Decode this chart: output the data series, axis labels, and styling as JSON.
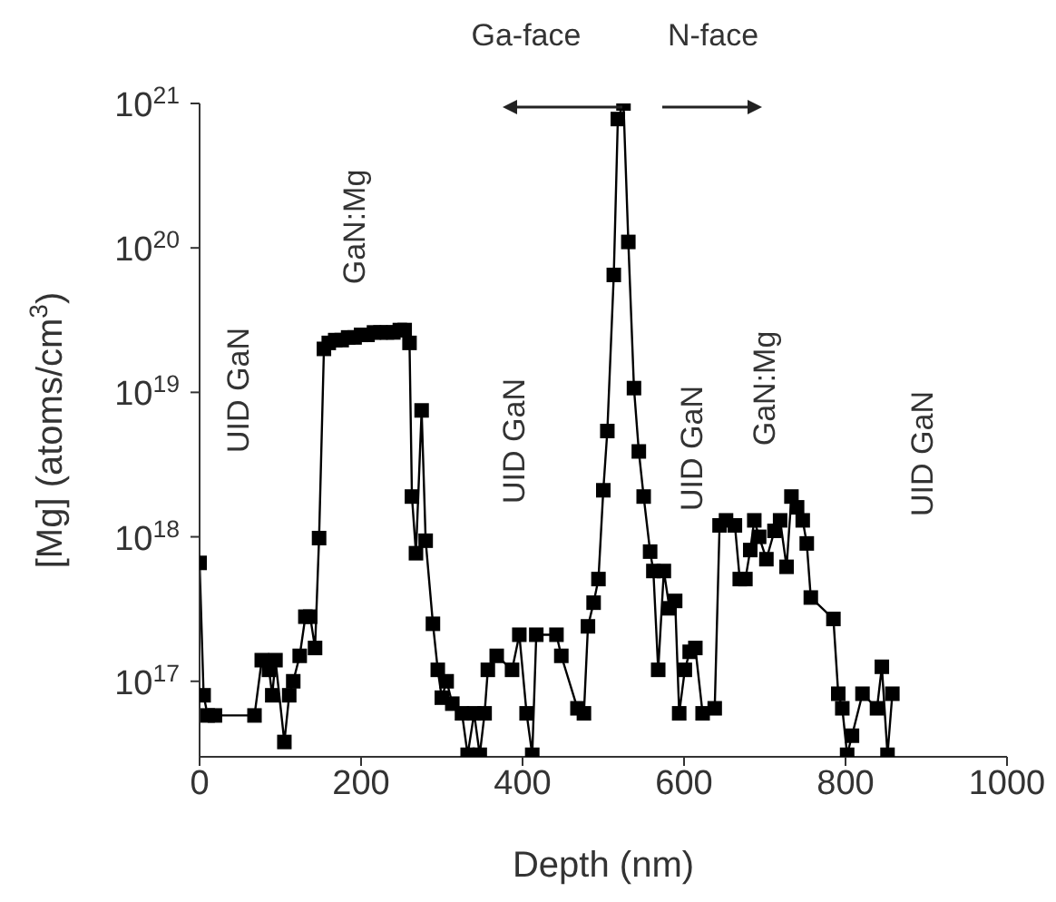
{
  "chart_data": {
    "type": "line",
    "xlabel": "Depth (nm)",
    "ylabel": "[Mg] (atoms/cm$^{3}$)",
    "log": "y",
    "xlim": [
      0,
      1000
    ],
    "xticks": [
      0,
      200,
      400,
      600,
      800,
      1000
    ],
    "ylim": [
      3e+16,
      1e+21
    ],
    "yticks": [
      {
        "value": 1e+17,
        "label": "10$^{17}$"
      },
      {
        "value": 1e+18,
        "label": "10$^{18}$"
      },
      {
        "value": 1e+19,
        "label": "10$^{19}$"
      },
      {
        "value": 1e+20,
        "label": "10$^{20}$"
      },
      {
        "value": 1e+21,
        "label": "10$^{21}$"
      }
    ],
    "marker": "square",
    "line_style": "solid",
    "x": [
      0,
      5,
      10,
      19,
      68,
      77,
      86,
      90,
      94,
      105,
      111,
      116,
      124,
      131,
      137,
      143,
      148,
      154,
      160,
      168,
      176,
      184,
      192,
      200,
      208,
      216,
      224,
      232,
      240,
      248,
      254,
      260,
      263,
      268,
      275,
      280,
      289,
      295,
      300,
      306,
      313,
      325,
      332,
      340,
      347,
      353,
      357,
      368,
      387,
      396,
      405,
      412,
      417,
      442,
      448,
      468,
      476,
      481,
      488,
      494,
      500,
      505,
      513,
      518,
      525,
      531,
      538,
      544,
      550,
      558,
      562,
      568,
      575,
      582,
      589,
      594,
      601,
      607,
      614,
      623,
      638,
      644,
      652,
      663,
      669,
      676,
      682,
      687,
      693,
      702,
      712,
      719,
      727,
      733,
      740,
      747,
      752,
      757,
      785,
      791,
      796,
      802,
      808,
      821,
      839,
      845,
      852,
      858
    ],
    "series": [
      {
        "color": "#000000",
        "values": [
          6.6e+17,
          8e+16,
          5.8e+16,
          5.8e+16,
          5.8e+16,
          1.4e+17,
          1.2e+17,
          8e+16,
          1.4e+17,
          3.8e+16,
          8e+16,
          1e+17,
          1.5e+17,
          2.8e+17,
          2.8e+17,
          1.7e+17,
          9.8e+17,
          2e+19,
          2.2e+19,
          2.3e+19,
          2.3e+19,
          2.4e+19,
          2.4e+19,
          2.5e+19,
          2.5e+19,
          2.6e+19,
          2.6e+19,
          2.6e+19,
          2.6e+19,
          2.7e+19,
          2.7e+19,
          2.2e+19,
          1.9e+18,
          7.7e+17,
          7.5e+18,
          9.4e+17,
          2.5e+17,
          1.2e+17,
          7.7e+16,
          1e+17,
          7e+16,
          6e+16,
          3.1e+16,
          6e+16,
          3.1e+16,
          6e+16,
          1.2e+17,
          1.5e+17,
          1.2e+17,
          2.1e+17,
          6e+16,
          3.1e+16,
          2.1e+17,
          2.1e+17,
          1.5e+17,
          6.5e+16,
          6e+16,
          2.4e+17,
          3.5e+17,
          5.1e+17,
          2.1e+18,
          5.4e+18,
          6.5e+19,
          7.8e+20,
          1e+21,
          1.1e+20,
          1.07e+19,
          3.9e+18,
          1.9e+18,
          7.9e+17,
          5.8e+17,
          1.2e+17,
          5.8e+17,
          3.2e+17,
          3.6e+17,
          6e+16,
          1.2e+17,
          1.6e+17,
          1.7e+17,
          6e+16,
          6.5e+16,
          1.2e+18,
          1.3e+18,
          1.2e+18,
          5.1e+17,
          5.1e+17,
          8.1e+17,
          1.3e+18,
          1e+18,
          7e+17,
          1.1e+18,
          1.3e+18,
          6.2e+17,
          1.9e+18,
          1.6e+18,
          1.3e+18,
          9e+17,
          3.8e+17,
          2.7e+17,
          8.2e+16,
          6.5e+16,
          3.1e+16,
          4.2e+16,
          8.2e+16,
          6.5e+16,
          1.26e+17,
          3.1e+16,
          8.2e+16
        ]
      }
    ],
    "annotations": [
      "Ga-face",
      "N-face",
      "UID GaN",
      "GaN:Mg",
      "UID GaN",
      "UID GaN",
      "GaN:Mg",
      "UID GaN"
    ]
  }
}
